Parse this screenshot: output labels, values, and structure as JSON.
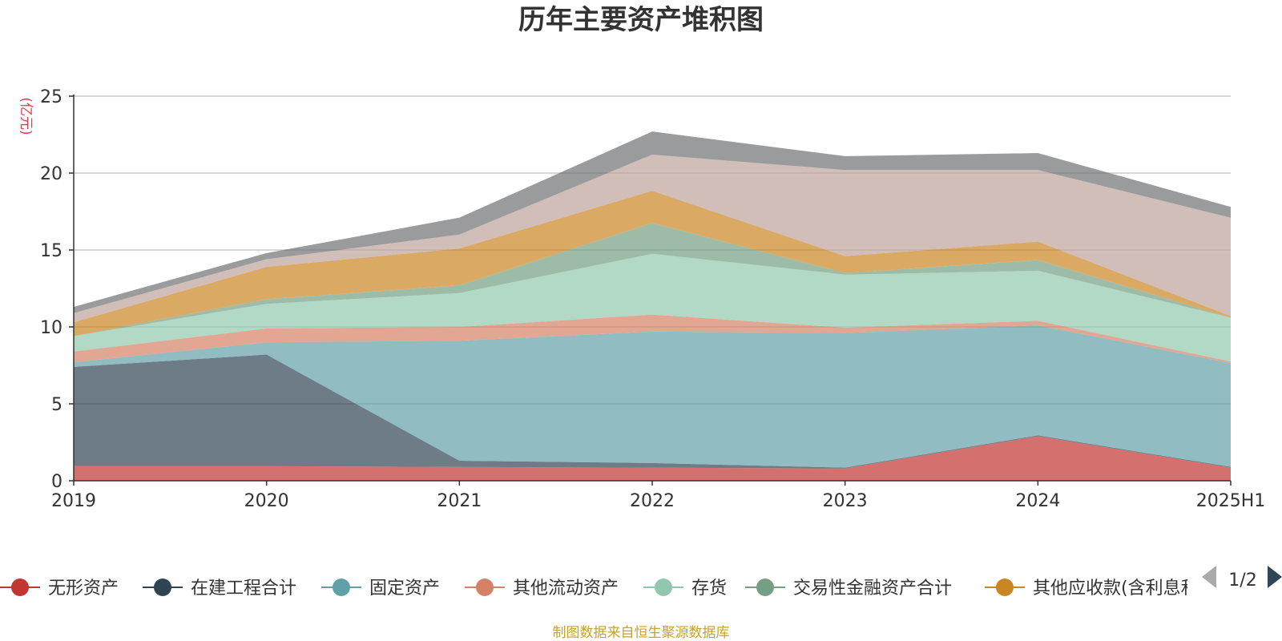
{
  "chart_data": {
    "type": "area",
    "stacked": true,
    "title": "历年主要资产堆积图",
    "unit_label": "(亿元)",
    "x": [
      "2019",
      "2020",
      "2021",
      "2022",
      "2023",
      "2024",
      "2025H1"
    ],
    "ylim": [
      0,
      25
    ],
    "yticks": [
      0,
      5,
      10,
      15,
      20,
      25
    ],
    "grid": true,
    "series": [
      {
        "name": "无形资产",
        "color": "#c23531",
        "values": [
          0.95,
          0.95,
          0.9,
          0.85,
          0.8,
          2.9,
          0.85
        ]
      },
      {
        "name": "在建工程合计",
        "color": "#2f4554",
        "values": [
          6.45,
          7.25,
          0.4,
          0.3,
          0.05,
          0.05,
          0.05
        ]
      },
      {
        "name": "固定资产",
        "color": "#61a0a8",
        "values": [
          0.3,
          0.8,
          7.8,
          8.55,
          8.75,
          7.15,
          6.75
        ]
      },
      {
        "name": "其他流动资产",
        "color": "#d48265",
        "values": [
          0.7,
          0.9,
          0.9,
          1.1,
          0.35,
          0.3,
          0.1
        ]
      },
      {
        "name": "存货",
        "color": "#91c7ae",
        "values": [
          1.0,
          1.6,
          2.2,
          3.95,
          3.45,
          3.25,
          2.85
        ]
      },
      {
        "name": "交易性金融资产合计",
        "color": "#749f83",
        "values": [
          0.0,
          0.3,
          0.5,
          2.0,
          0.1,
          0.7,
          0.0
        ]
      },
      {
        "name": "其他应收款(含利息和股利)",
        "color": "#ca8622",
        "values": [
          0.9,
          2.1,
          2.4,
          2.1,
          1.1,
          1.2,
          0.1
        ]
      },
      {
        "name": "",
        "color": "#bda29a",
        "values": [
          0.6,
          0.5,
          0.9,
          2.35,
          5.6,
          4.65,
          6.4
        ]
      },
      {
        "name": "",
        "color": "#6e7074",
        "values": [
          0.4,
          0.4,
          1.1,
          1.5,
          0.9,
          1.1,
          0.7
        ]
      }
    ],
    "legend": {
      "position": "bottom",
      "page_indicator": "1/2",
      "visible_items": [
        "无形资产",
        "在建工程合计",
        "固定资产",
        "其他流动资产",
        "存货",
        "交易性金融资产合计",
        "其他应收款(含利息和股利)"
      ]
    },
    "footer": "制图数据来自恒生聚源数据库"
  }
}
